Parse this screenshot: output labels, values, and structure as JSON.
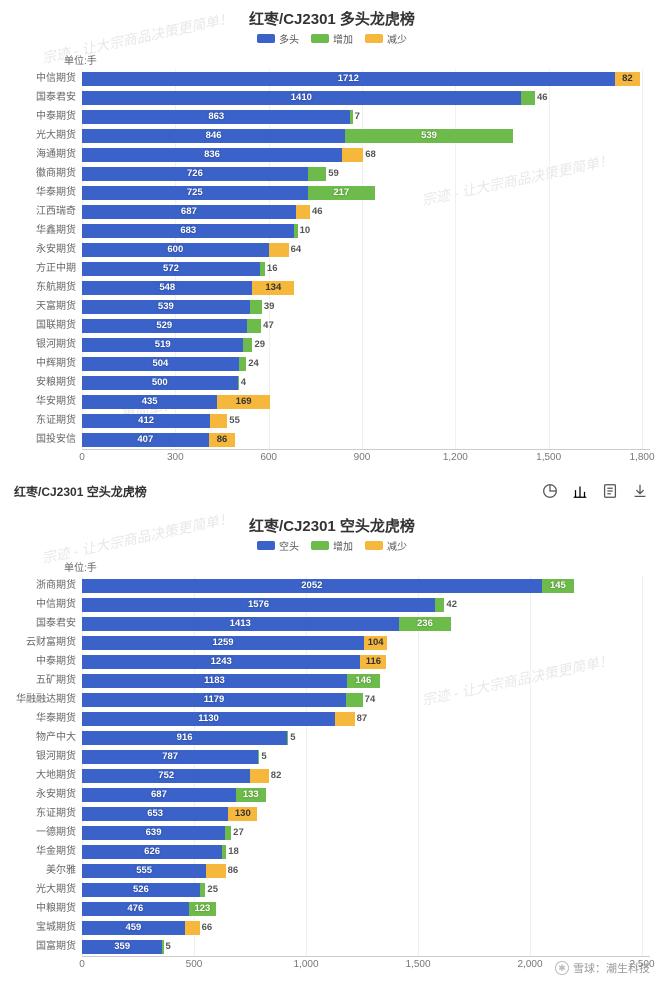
{
  "colors": {
    "main": "#3a62c8",
    "increase": "#6dbb4a",
    "decrease": "#f5b83d",
    "grid": "#f0f0f0",
    "text": "#666666"
  },
  "chart1": {
    "title": "红枣/CJ2301 多头龙虎榜",
    "unit": "单位:手",
    "type": "bar",
    "legend": [
      {
        "label": "多头",
        "color": "#3a62c8"
      },
      {
        "label": "增加",
        "color": "#6dbb4a"
      },
      {
        "label": "减少",
        "color": "#f5b83d"
      }
    ],
    "xlim": [
      0,
      1800
    ],
    "xtick_step": 300,
    "rows": [
      {
        "name": "中信期货",
        "main": 1712,
        "delta": 82,
        "dir": "dec"
      },
      {
        "name": "国泰君安",
        "main": 1410,
        "delta": 46,
        "dir": "inc"
      },
      {
        "name": "中泰期货",
        "main": 863,
        "delta": 7,
        "dir": "inc"
      },
      {
        "name": "光大期货",
        "main": 846,
        "delta": 539,
        "dir": "inc"
      },
      {
        "name": "海通期货",
        "main": 836,
        "delta": 68,
        "dir": "dec"
      },
      {
        "name": "徽商期货",
        "main": 726,
        "delta": 59,
        "dir": "inc"
      },
      {
        "name": "华泰期货",
        "main": 725,
        "delta": 217,
        "dir": "inc"
      },
      {
        "name": "江西瑞奇",
        "main": 687,
        "delta": 46,
        "dir": "dec"
      },
      {
        "name": "华鑫期货",
        "main": 683,
        "delta": 10,
        "dir": "inc"
      },
      {
        "name": "永安期货",
        "main": 600,
        "delta": 64,
        "dir": "dec"
      },
      {
        "name": "方正中期",
        "main": 572,
        "delta": 16,
        "dir": "inc"
      },
      {
        "name": "东航期货",
        "main": 548,
        "delta": 134,
        "dir": "dec"
      },
      {
        "name": "天富期货",
        "main": 539,
        "delta": 39,
        "dir": "inc"
      },
      {
        "name": "国联期货",
        "main": 529,
        "delta": 47,
        "dir": "inc"
      },
      {
        "name": "银河期货",
        "main": 519,
        "delta": 29,
        "dir": "inc"
      },
      {
        "name": "中辉期货",
        "main": 504,
        "delta": 24,
        "dir": "inc"
      },
      {
        "name": "安粮期货",
        "main": 500,
        "delta": 4,
        "dir": "inc"
      },
      {
        "name": "华安期货",
        "main": 435,
        "delta": 169,
        "dir": "dec"
      },
      {
        "name": "东证期货",
        "main": 412,
        "delta": 55,
        "dir": "dec"
      },
      {
        "name": "国投安信",
        "main": 407,
        "delta": 86,
        "dir": "dec"
      }
    ]
  },
  "section_header": {
    "title": "红枣/CJ2301 空头龙虎榜"
  },
  "chart2": {
    "title": "红枣/CJ2301 空头龙虎榜",
    "unit": "单位:手",
    "type": "bar",
    "legend": [
      {
        "label": "空头",
        "color": "#3a62c8"
      },
      {
        "label": "增加",
        "color": "#6dbb4a"
      },
      {
        "label": "减少",
        "color": "#f5b83d"
      }
    ],
    "xlim": [
      0,
      2500
    ],
    "xtick_step": 500,
    "rows": [
      {
        "name": "浙商期货",
        "main": 2052,
        "delta": 145,
        "dir": "inc"
      },
      {
        "name": "中信期货",
        "main": 1576,
        "delta": 42,
        "dir": "inc"
      },
      {
        "name": "国泰君安",
        "main": 1413,
        "delta": 236,
        "dir": "inc"
      },
      {
        "name": "云财富期货",
        "main": 1259,
        "delta": 104,
        "dir": "dec"
      },
      {
        "name": "中泰期货",
        "main": 1243,
        "delta": 116,
        "dir": "dec"
      },
      {
        "name": "五矿期货",
        "main": 1183,
        "delta": 146,
        "dir": "inc"
      },
      {
        "name": "华融融达期货",
        "main": 1179,
        "delta": 74,
        "dir": "inc"
      },
      {
        "name": "华泰期货",
        "main": 1130,
        "delta": 87,
        "dir": "dec"
      },
      {
        "name": "物产中大",
        "main": 916,
        "delta": 5,
        "dir": "inc"
      },
      {
        "name": "银河期货",
        "main": 787,
        "delta": 5,
        "dir": "inc"
      },
      {
        "name": "大地期货",
        "main": 752,
        "delta": 82,
        "dir": "dec"
      },
      {
        "name": "永安期货",
        "main": 687,
        "delta": 133,
        "dir": "inc"
      },
      {
        "name": "东证期货",
        "main": 653,
        "delta": 130,
        "dir": "dec"
      },
      {
        "name": "一德期货",
        "main": 639,
        "delta": 27,
        "dir": "inc"
      },
      {
        "name": "华金期货",
        "main": 626,
        "delta": 18,
        "dir": "inc"
      },
      {
        "name": "美尔雅",
        "main": 555,
        "delta": 86,
        "dir": "dec"
      },
      {
        "name": "光大期货",
        "main": 526,
        "delta": 25,
        "dir": "inc"
      },
      {
        "name": "中粮期货",
        "main": 476,
        "delta": 123,
        "dir": "inc"
      },
      {
        "name": "宝城期货",
        "main": 459,
        "delta": 66,
        "dir": "dec"
      },
      {
        "name": "国富期货",
        "main": 359,
        "delta": 5,
        "dir": "inc"
      }
    ]
  },
  "footer": {
    "brand_prefix": "雪球：",
    "brand": "潮生科技"
  }
}
